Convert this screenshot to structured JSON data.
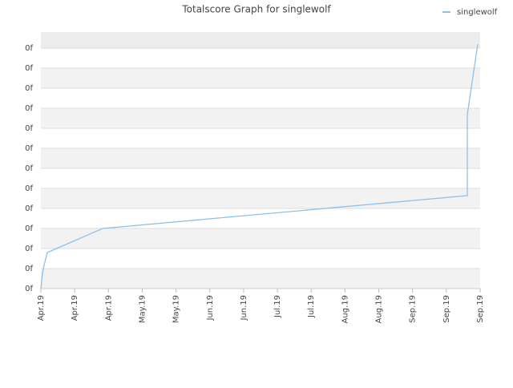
{
  "chart_data": {
    "type": "line",
    "title": "Totalscore Graph for singlewolf",
    "xticks": [
      {
        "value": 0,
        "label": "Apr.19"
      },
      {
        "value": 1,
        "label": "Apr.19"
      },
      {
        "value": 2,
        "label": "Apr.19"
      },
      {
        "value": 3,
        "label": "May.19"
      },
      {
        "value": 4,
        "label": "May.19"
      },
      {
        "value": 5,
        "label": "Jun.19"
      },
      {
        "value": 6,
        "label": "Jun.19"
      },
      {
        "value": 7,
        "label": "Jul.19"
      },
      {
        "value": 8,
        "label": "Jul.19"
      },
      {
        "value": 9,
        "label": "Aug.19"
      },
      {
        "value": 10,
        "label": "Aug.19"
      },
      {
        "value": 11,
        "label": "Sep.19"
      },
      {
        "value": 12,
        "label": "Sep.19"
      },
      {
        "value": 13,
        "label": "Sep.19"
      }
    ],
    "xlim": [
      0,
      13
    ],
    "yticks": [
      {
        "value": 0,
        "label": "0f"
      },
      {
        "value": 1,
        "label": "0f"
      },
      {
        "value": 2,
        "label": "0f"
      },
      {
        "value": 3,
        "label": "0f"
      },
      {
        "value": 4,
        "label": "0f"
      },
      {
        "value": 5,
        "label": "0f"
      },
      {
        "value": 6,
        "label": "0f"
      },
      {
        "value": 7,
        "label": "0f"
      },
      {
        "value": 8,
        "label": "0f"
      },
      {
        "value": 9,
        "label": "0f"
      },
      {
        "value": 10,
        "label": "0f"
      },
      {
        "value": 11,
        "label": "0f"
      },
      {
        "value": 12,
        "label": "0f"
      }
    ],
    "ylim": [
      0,
      12.8
    ],
    "x": [
      0,
      0.05,
      0.1,
      0.19,
      1.83,
      12.62,
      12.62,
      12.93
    ],
    "series": [
      {
        "name": "singlewolf",
        "color": "#8cc0ea",
        "values": [
          0,
          0.8,
          1.2,
          1.8,
          3.0,
          4.64,
          8.68,
          12.2
        ]
      }
    ],
    "legend": "top-right",
    "grid": true
  }
}
